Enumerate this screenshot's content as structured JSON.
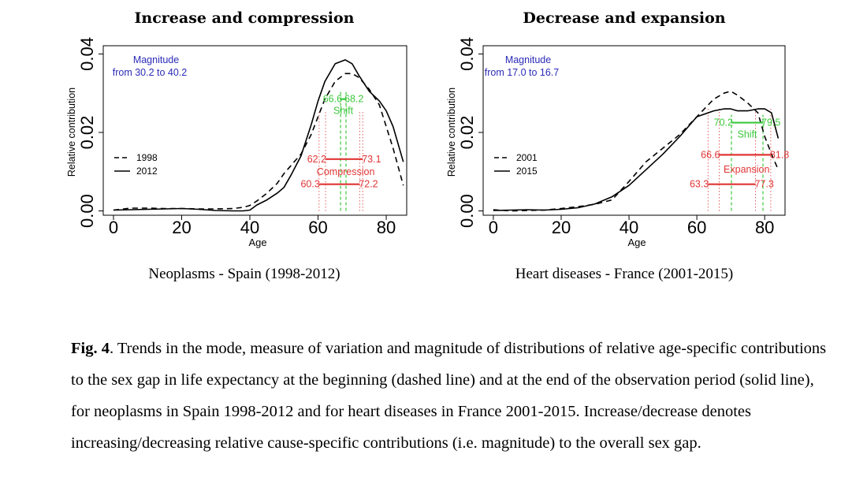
{
  "colors": {
    "magnitude": "#2b2bb8",
    "shift": "#3cc83c",
    "spread": "#e03535",
    "curve": "#000000"
  },
  "chart_data": [
    {
      "type": "line",
      "title": "Increase and compression",
      "subtitle": "Neoplasms - Spain (1998-2012)",
      "xlabel": "Age",
      "ylabel": "Relative contribution",
      "xlim": [
        -3,
        86
      ],
      "ylim": [
        -0.0011,
        0.0421
      ],
      "xticks": [
        "0",
        "20",
        "40",
        "60",
        "80"
      ],
      "yticks": [
        "0.00",
        "0.02",
        "0.04"
      ],
      "magnitude": {
        "label": "Magnitude",
        "text": "from 30.2 to 40.2"
      },
      "legend": [
        {
          "label": "1998",
          "style": "dashed"
        },
        {
          "label": "2012",
          "style": "solid"
        }
      ],
      "series": [
        {
          "name": "1998",
          "style": "dashed",
          "x": [
            0,
            5,
            10,
            15,
            20,
            25,
            30,
            35,
            38,
            40,
            42,
            45,
            48,
            50,
            52,
            55,
            58,
            60,
            62,
            65,
            68,
            70,
            72,
            75,
            78,
            80,
            82,
            85
          ],
          "y": [
            0.0002,
            0.0007,
            0.0007,
            0.0006,
            0.0006,
            0.0005,
            0.0005,
            0.0006,
            0.0009,
            0.0014,
            0.0025,
            0.0045,
            0.007,
            0.0095,
            0.0115,
            0.0145,
            0.0195,
            0.024,
            0.0285,
            0.033,
            0.035,
            0.035,
            0.034,
            0.031,
            0.027,
            0.0215,
            0.016,
            0.0065
          ]
        },
        {
          "name": "2012",
          "style": "solid",
          "x": [
            0,
            5,
            10,
            15,
            20,
            25,
            30,
            35,
            38,
            40,
            42,
            45,
            48,
            50,
            52,
            55,
            58,
            60,
            62,
            65,
            68,
            70,
            72,
            75,
            78,
            80,
            82,
            85
          ],
          "y": [
            0.0002,
            0.0003,
            0.0004,
            0.0005,
            0.0006,
            0.0004,
            0.0001,
            0,
            0,
            0.0002,
            0.0015,
            0.0028,
            0.0045,
            0.006,
            0.009,
            0.014,
            0.022,
            0.028,
            0.033,
            0.0375,
            0.0385,
            0.0375,
            0.0345,
            0.0305,
            0.028,
            0.0255,
            0.0215,
            0.0125
          ]
        }
      ],
      "shift": {
        "label": "Shift",
        "from": "66.6",
        "to": "68.2",
        "x_from": 66.6,
        "x_to": 68.2,
        "y": 0.0285
      },
      "spread": {
        "label": "Compression",
        "upper": {
          "from": "62.2",
          "to": "73.1",
          "x_from": 62.2,
          "x_to": 73.1,
          "y": 0.0132
        },
        "lower": {
          "from": "60.3",
          "to": "72.2",
          "x_from": 60.3,
          "x_to": 72.2,
          "y": 0.0068
        }
      }
    },
    {
      "type": "line",
      "title": "Decrease and expansion",
      "subtitle": "Heart diseases - France (2001-2015)",
      "xlabel": "Age",
      "ylabel": "Relative contribution",
      "xlim": [
        -3,
        86
      ],
      "ylim": [
        -0.0011,
        0.0421
      ],
      "xticks": [
        "0",
        "20",
        "40",
        "60",
        "80"
      ],
      "yticks": [
        "0.00",
        "0.02",
        "0.04"
      ],
      "magnitude": {
        "label": "Magnitude",
        "text": "from 17.0 to 16.7"
      },
      "legend": [
        {
          "label": "2001",
          "style": "dashed"
        },
        {
          "label": "2015",
          "style": "solid"
        }
      ],
      "series": [
        {
          "name": "2001",
          "style": "dashed",
          "x": [
            0,
            5,
            10,
            15,
            20,
            25,
            30,
            35,
            40,
            45,
            50,
            55,
            60,
            65,
            68,
            70,
            72,
            75,
            78,
            80,
            82,
            84
          ],
          "y": [
            0.0003,
            0,
            0.0001,
            0.0002,
            0.0006,
            0.0011,
            0.0017,
            0.0028,
            0.0075,
            0.0125,
            0.016,
            0.0195,
            0.024,
            0.0285,
            0.03,
            0.0305,
            0.0295,
            0.0275,
            0.025,
            0.019,
            0.0145,
            0.0105
          ]
        },
        {
          "name": "2015",
          "style": "solid",
          "x": [
            0,
            5,
            10,
            15,
            20,
            25,
            30,
            35,
            40,
            45,
            50,
            55,
            60,
            65,
            68,
            70,
            72,
            75,
            78,
            80,
            82,
            84
          ],
          "y": [
            0.0001,
            0.0002,
            0.0003,
            0.0002,
            0.0004,
            0.0008,
            0.0018,
            0.0036,
            0.0065,
            0.0105,
            0.0145,
            0.019,
            0.024,
            0.0255,
            0.026,
            0.026,
            0.0255,
            0.0255,
            0.026,
            0.026,
            0.025,
            0.0185
          ]
        }
      ],
      "shift": {
        "label": "Shift",
        "from": "70.2",
        "to": "79.5",
        "x_from": 70.2,
        "x_to": 79.5,
        "y": 0.0225
      },
      "spread": {
        "label": "Expansion",
        "upper": {
          "from": "66.6",
          "to": "81.8",
          "x_from": 66.6,
          "x_to": 81.8,
          "y": 0.0143
        },
        "lower": {
          "from": "63.3",
          "to": "77.3",
          "x_from": 63.3,
          "x_to": 77.3,
          "y": 0.0068
        }
      }
    }
  ],
  "caption": {
    "label": "Fig. 4",
    "text": ". Trends in the mode, measure of variation and magnitude of distributions of relative age-specific contributions to the sex gap in life expectancy at the beginning (dashed line) and at the end of the observation period (solid line), for neoplasms in Spain 1998-2012 and for heart diseases in France 2001-2015. Increase/decrease denotes increasing/decreasing relative cause-specific contributions (i.e. magnitude) to the overall sex gap."
  }
}
